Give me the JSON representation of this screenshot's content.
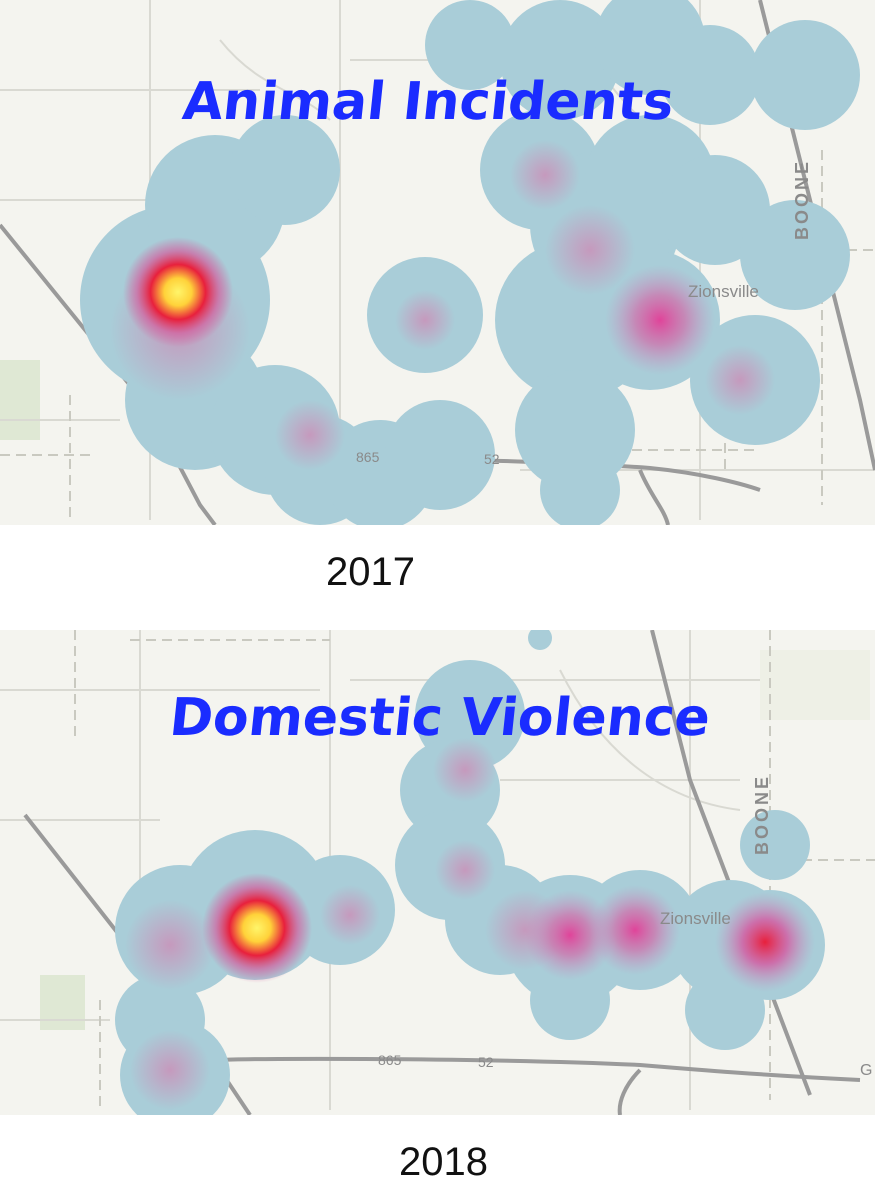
{
  "panels": [
    {
      "title": "Animal Incidents",
      "year": "2017",
      "place_label": "Zionsville",
      "county_label": "BOONE",
      "route_labels": [
        "865",
        "52"
      ]
    },
    {
      "title": "Domestic Violence",
      "year": "2018",
      "place_label": "Zionsville",
      "county_label": "BOONE",
      "route_labels": [
        "865",
        "52"
      ],
      "edge_label": "G"
    }
  ],
  "colors": {
    "title": "#1a2cff",
    "heat_base": "#a9cdd8",
    "heat_mid": "#e06aa8",
    "heat_hot": "#e8203c",
    "heat_peak": "#ffee44",
    "road": "#9a9a9a"
  }
}
